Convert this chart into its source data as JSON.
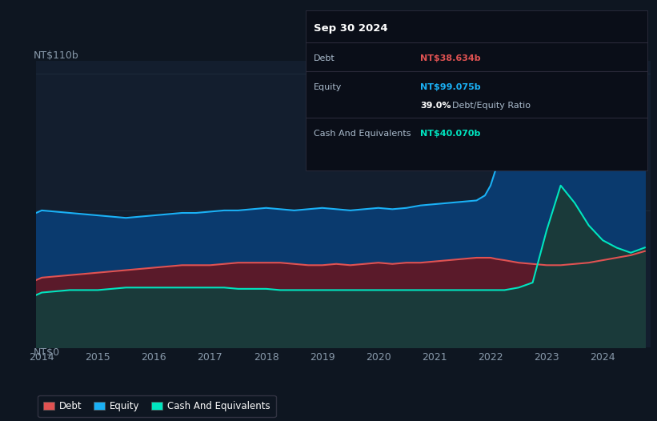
{
  "bg_color": "#0e1621",
  "plot_bg_color": "#131e2e",
  "y_label_top": "NT$110b",
  "y_label_bottom": "NT$0",
  "x_ticks": [
    2014,
    2015,
    2016,
    2017,
    2018,
    2019,
    2020,
    2021,
    2022,
    2023,
    2024
  ],
  "tooltip": {
    "date": "Sep 30 2024",
    "debt_label": "Debt",
    "debt_value": "NT$38.634b",
    "equity_label": "Equity",
    "equity_value": "NT$99.075b",
    "ratio_value": "39.0%",
    "ratio_label": "Debt/Equity Ratio",
    "cash_label": "Cash And Equivalents",
    "cash_value": "NT$40.070b"
  },
  "debt_color": "#e05252",
  "equity_color": "#1ab0f5",
  "cash_color": "#00e5c0",
  "legend_border_color": "#3a3a3a",
  "years": [
    2013.9,
    2014.0,
    2014.25,
    2014.5,
    2014.75,
    2015.0,
    2015.25,
    2015.5,
    2015.75,
    2016.0,
    2016.25,
    2016.5,
    2016.75,
    2017.0,
    2017.25,
    2017.5,
    2017.75,
    2018.0,
    2018.25,
    2018.5,
    2018.75,
    2019.0,
    2019.25,
    2019.5,
    2019.75,
    2020.0,
    2020.25,
    2020.5,
    2020.75,
    2021.0,
    2021.25,
    2021.5,
    2021.75,
    2021.9,
    2022.0,
    2022.1,
    2022.25,
    2022.5,
    2022.75,
    2023.0,
    2023.25,
    2023.5,
    2023.75,
    2024.0,
    2024.25,
    2024.5,
    2024.75
  ],
  "equity": [
    54,
    55,
    54.5,
    54,
    53.5,
    53,
    52.5,
    52,
    52.5,
    53,
    53.5,
    54,
    54,
    54.5,
    55,
    55,
    55.5,
    56,
    55.5,
    55,
    55.5,
    56,
    55.5,
    55,
    55.5,
    56,
    55.5,
    56,
    57,
    57.5,
    58,
    58.5,
    59,
    61,
    65,
    72,
    82,
    92,
    99,
    107,
    110,
    103,
    98,
    99,
    100,
    101,
    99.075
  ],
  "debt": [
    27,
    28,
    28.5,
    29,
    29.5,
    30,
    30.5,
    31,
    31.5,
    32,
    32.5,
    33,
    33,
    33,
    33.5,
    34,
    34,
    34,
    34,
    33.5,
    33,
    33,
    33.5,
    33,
    33.5,
    34,
    33.5,
    34,
    34,
    34.5,
    35,
    35.5,
    36,
    36,
    36,
    35.5,
    35,
    34,
    33.5,
    33,
    33,
    33.5,
    34,
    35,
    36,
    37,
    38.634
  ],
  "cash": [
    21,
    22,
    22.5,
    23,
    23,
    23,
    23.5,
    24,
    24,
    24,
    24,
    24,
    24,
    24,
    24,
    23.5,
    23.5,
    23.5,
    23,
    23,
    23,
    23,
    23,
    23,
    23,
    23,
    23,
    23,
    23,
    23,
    23,
    23,
    23,
    23,
    23,
    23,
    23,
    24,
    26,
    47,
    65,
    58,
    49,
    43,
    40,
    38,
    40.07
  ],
  "ylim": [
    0,
    115
  ],
  "xlim_start": 2013.9,
  "xlim_end": 2024.85
}
